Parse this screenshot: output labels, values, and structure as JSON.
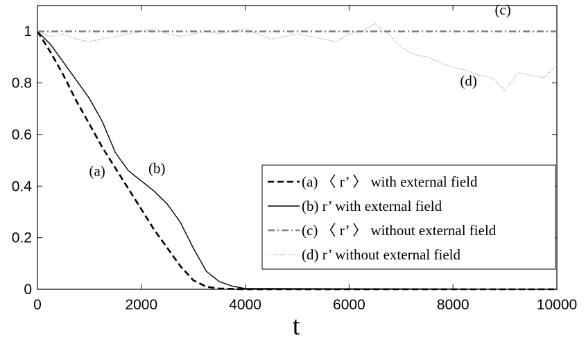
{
  "chart_data": {
    "type": "line",
    "title": "",
    "xlabel": "t",
    "ylabel": "",
    "xlim": [
      0,
      10000
    ],
    "ylim": [
      0,
      1.1
    ],
    "xticks": [
      0,
      2000,
      4000,
      6000,
      8000,
      10000
    ],
    "yticks": [
      0,
      0.2,
      0.4,
      0.6,
      0.8,
      1
    ],
    "ytick_labels": [
      "0",
      "0.2",
      "0.4",
      "0.6",
      "0.8",
      "1"
    ],
    "grid": false,
    "legend_position": "bottom-right",
    "series": [
      {
        "name": "(a) 〈 r’ 〉 with external field",
        "curve_label": "(a)",
        "style": "dashed",
        "color": "#000000",
        "x": [
          0,
          250,
          500,
          750,
          1000,
          1250,
          1500,
          1750,
          2000,
          2250,
          2500,
          2750,
          3000,
          3250,
          3500,
          4000,
          10000
        ],
        "y": [
          1.0,
          0.92,
          0.83,
          0.73,
          0.64,
          0.55,
          0.47,
          0.39,
          0.31,
          0.23,
          0.16,
          0.09,
          0.035,
          0.01,
          0.003,
          0.0,
          0.0
        ]
      },
      {
        "name": "(b)  r’ with external field",
        "curve_label": "(b)",
        "style": "solid",
        "color": "#000000",
        "x": [
          0,
          250,
          500,
          750,
          1000,
          1250,
          1500,
          1750,
          2000,
          2250,
          2500,
          2750,
          3000,
          3250,
          3500,
          3750,
          4000,
          10000
        ],
        "y": [
          1.0,
          0.95,
          0.88,
          0.81,
          0.74,
          0.65,
          0.53,
          0.46,
          0.42,
          0.38,
          0.33,
          0.26,
          0.16,
          0.07,
          0.03,
          0.012,
          0.003,
          0.0
        ]
      },
      {
        "name": "(c) 〈 r’ 〉 without external field",
        "curve_label": "(c)",
        "style": "dashdot",
        "color": "#808080",
        "x": [
          0,
          10000
        ],
        "y": [
          1.0,
          1.0
        ]
      },
      {
        "name": "(d)  r’ without external field",
        "curve_label": "(d)",
        "style": "dotted",
        "color": "#808080",
        "x": [
          0,
          250,
          500,
          750,
          1000,
          1250,
          1500,
          1750,
          2000,
          2250,
          2500,
          2750,
          3000,
          3250,
          3500,
          3750,
          4000,
          4250,
          4500,
          4750,
          5000,
          5250,
          5500,
          5750,
          6000,
          6250,
          6500,
          6750,
          7000,
          7250,
          7500,
          7750,
          8000,
          8250,
          8500,
          8750,
          9000,
          9250,
          9500,
          9750,
          10000
        ],
        "y": [
          1.0,
          0.98,
          0.99,
          0.97,
          0.96,
          0.97,
          0.98,
          0.99,
          1.0,
          1.01,
          0.99,
          0.98,
          0.99,
          1.0,
          0.99,
          1.0,
          1.01,
          0.99,
          0.97,
          0.98,
          0.99,
          0.98,
          0.97,
          0.96,
          0.99,
          1.0,
          1.03,
          0.99,
          0.94,
          0.91,
          0.9,
          0.88,
          0.86,
          0.85,
          0.83,
          0.82,
          0.77,
          0.84,
          0.83,
          0.82,
          0.87
        ]
      }
    ]
  }
}
